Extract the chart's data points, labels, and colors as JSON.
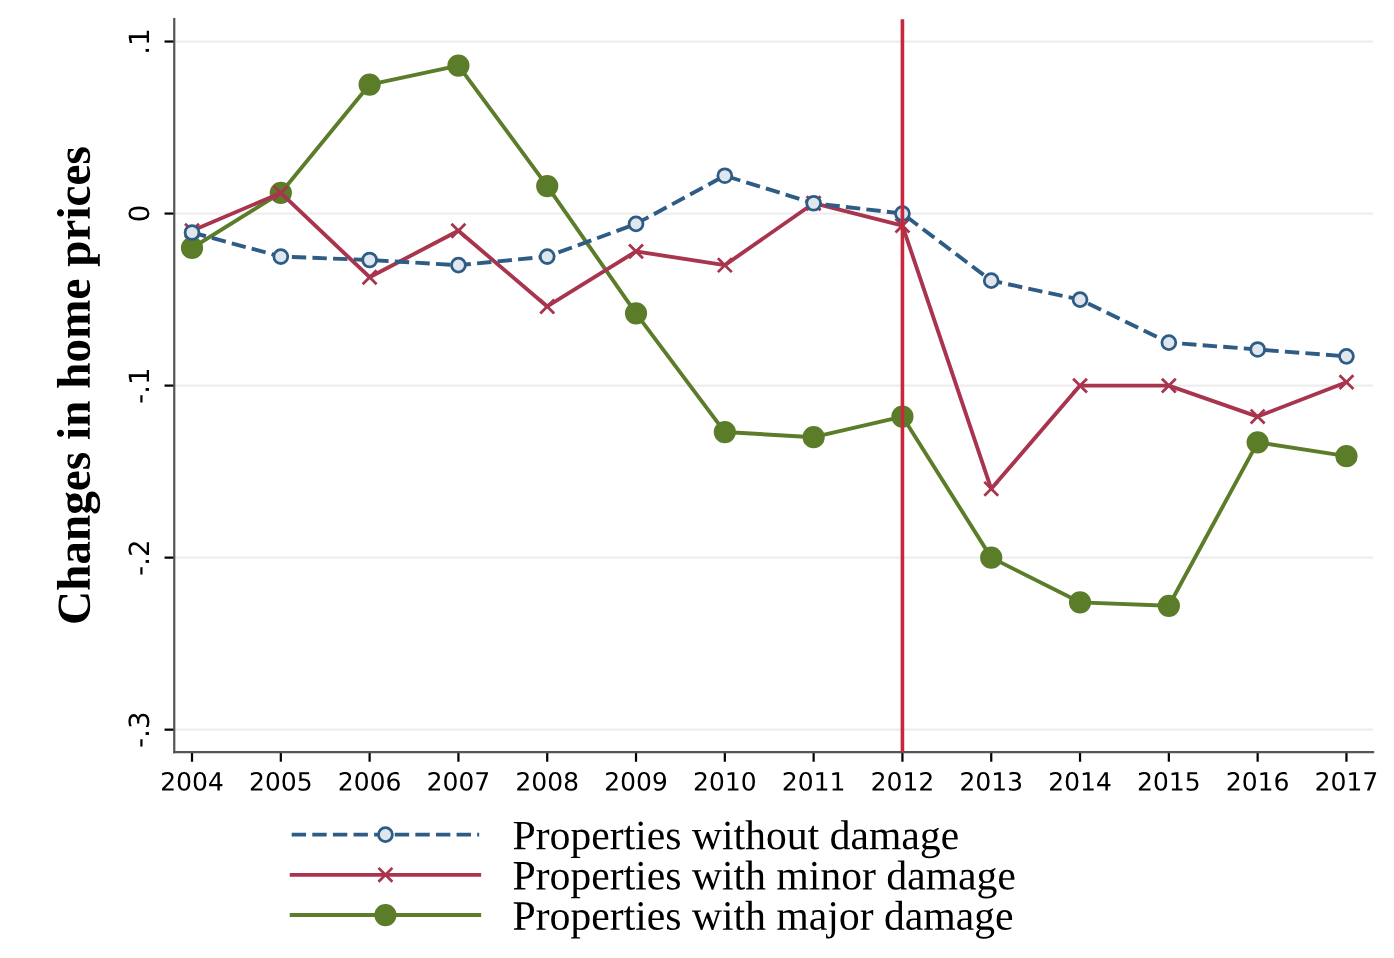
{
  "chart_data": {
    "type": "line",
    "ylabel": "Changes in home prices",
    "x": [
      2004,
      2005,
      2006,
      2007,
      2008,
      2009,
      2010,
      2011,
      2012,
      2013,
      2014,
      2015,
      2016,
      2017
    ],
    "series": [
      {
        "name": "Properties without damage",
        "color": "#2e5c85",
        "line_style": "dashed",
        "marker": "circle",
        "values": [
          -0.011,
          -0.025,
          -0.027,
          -0.03,
          -0.025,
          -0.006,
          0.022,
          0.006,
          0.0,
          -0.039,
          -0.05,
          -0.075,
          -0.079,
          -0.083
        ]
      },
      {
        "name": "Properties with minor damage",
        "color": "#a8344e",
        "line_style": "solid",
        "marker": "cross",
        "values": [
          -0.01,
          0.012,
          -0.037,
          -0.01,
          -0.054,
          -0.022,
          -0.03,
          0.006,
          -0.007,
          -0.16,
          -0.1,
          -0.1,
          -0.118,
          -0.098
        ]
      },
      {
        "name": "Properties with major damage",
        "color": "#5b7d2a",
        "line_style": "solid",
        "marker": "circle",
        "values": [
          -0.02,
          0.012,
          0.075,
          0.086,
          0.016,
          -0.058,
          -0.127,
          -0.13,
          -0.118,
          -0.2,
          -0.226,
          -0.228,
          -0.133,
          -0.141
        ]
      }
    ],
    "xlim": [
      2003.8,
      2017.3
    ],
    "xticks": [
      2004,
      2005,
      2006,
      2007,
      2008,
      2009,
      2010,
      2011,
      2012,
      2013,
      2014,
      2015,
      2016,
      2017
    ],
    "ylim": [
      -0.313,
      0.113
    ],
    "yticks": [
      {
        "value": 0.1,
        "label": ".1"
      },
      {
        "value": 0,
        "label": "0"
      },
      {
        "value": -0.1,
        "label": "-.1"
      },
      {
        "value": -0.2,
        "label": "-.2"
      },
      {
        "value": -0.3,
        "label": "-.3"
      }
    ],
    "ref_lines": [
      {
        "axis": "x",
        "value": 2012,
        "color": "#c8283c"
      }
    ],
    "grid": "y",
    "legend": "bottom"
  }
}
